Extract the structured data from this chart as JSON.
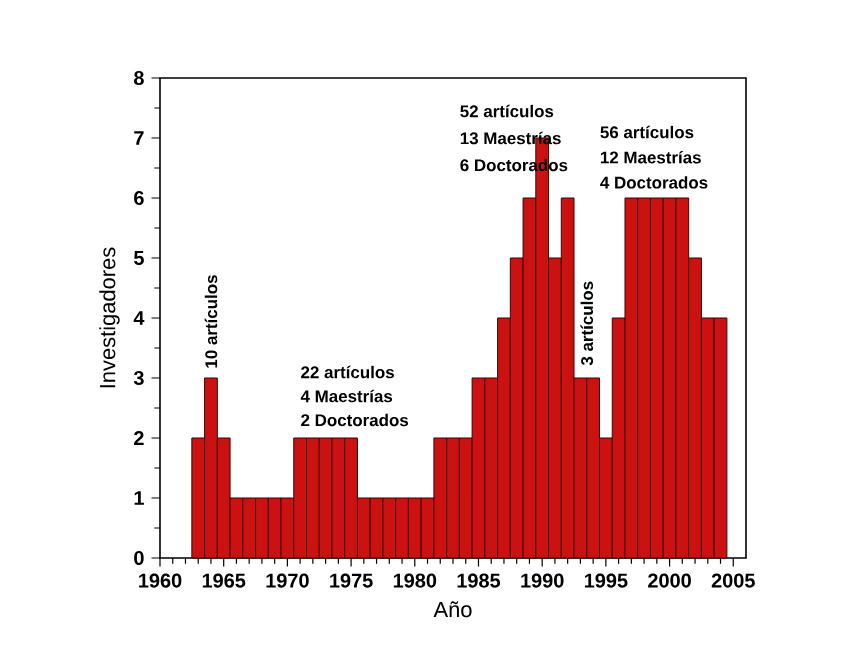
{
  "chart_data": {
    "type": "bar",
    "xlabel": "Año",
    "ylabel": "Investigadores",
    "x": [
      1963,
      1964,
      1965,
      1966,
      1967,
      1968,
      1969,
      1970,
      1971,
      1972,
      1973,
      1974,
      1975,
      1976,
      1977,
      1978,
      1979,
      1980,
      1981,
      1982,
      1983,
      1984,
      1985,
      1986,
      1987,
      1988,
      1989,
      1990,
      1991,
      1992,
      1993,
      1994,
      1995,
      1996,
      1997,
      1998,
      1999,
      2000,
      2001,
      2002,
      2003,
      2004
    ],
    "values": [
      2,
      3,
      2,
      1,
      1,
      1,
      1,
      1,
      2,
      2,
      2,
      2,
      2,
      1,
      1,
      1,
      1,
      1,
      1,
      2,
      2,
      2,
      3,
      3,
      4,
      5,
      6,
      7,
      5,
      6,
      3,
      3,
      2,
      4,
      6,
      6,
      6,
      6,
      6,
      5,
      4,
      4
    ],
    "color": "#cc1111",
    "xlim": [
      1960,
      2006
    ],
    "ylim": [
      0,
      8
    ],
    "xticks": [
      1960,
      1965,
      1970,
      1975,
      1980,
      1985,
      1990,
      1995,
      2000,
      2005
    ],
    "yticks": [
      0,
      1,
      2,
      3,
      4,
      5,
      6,
      7,
      8
    ],
    "annotations": [
      "10 artículos",
      "22 artículos",
      "4 Maestrías",
      "2 Doctorados",
      "52 artículos",
      "13 Maestrías",
      "6 Doctorados",
      "3 artículos",
      "56 artículos",
      "12 Maestrías",
      "4 Doctorados"
    ]
  }
}
